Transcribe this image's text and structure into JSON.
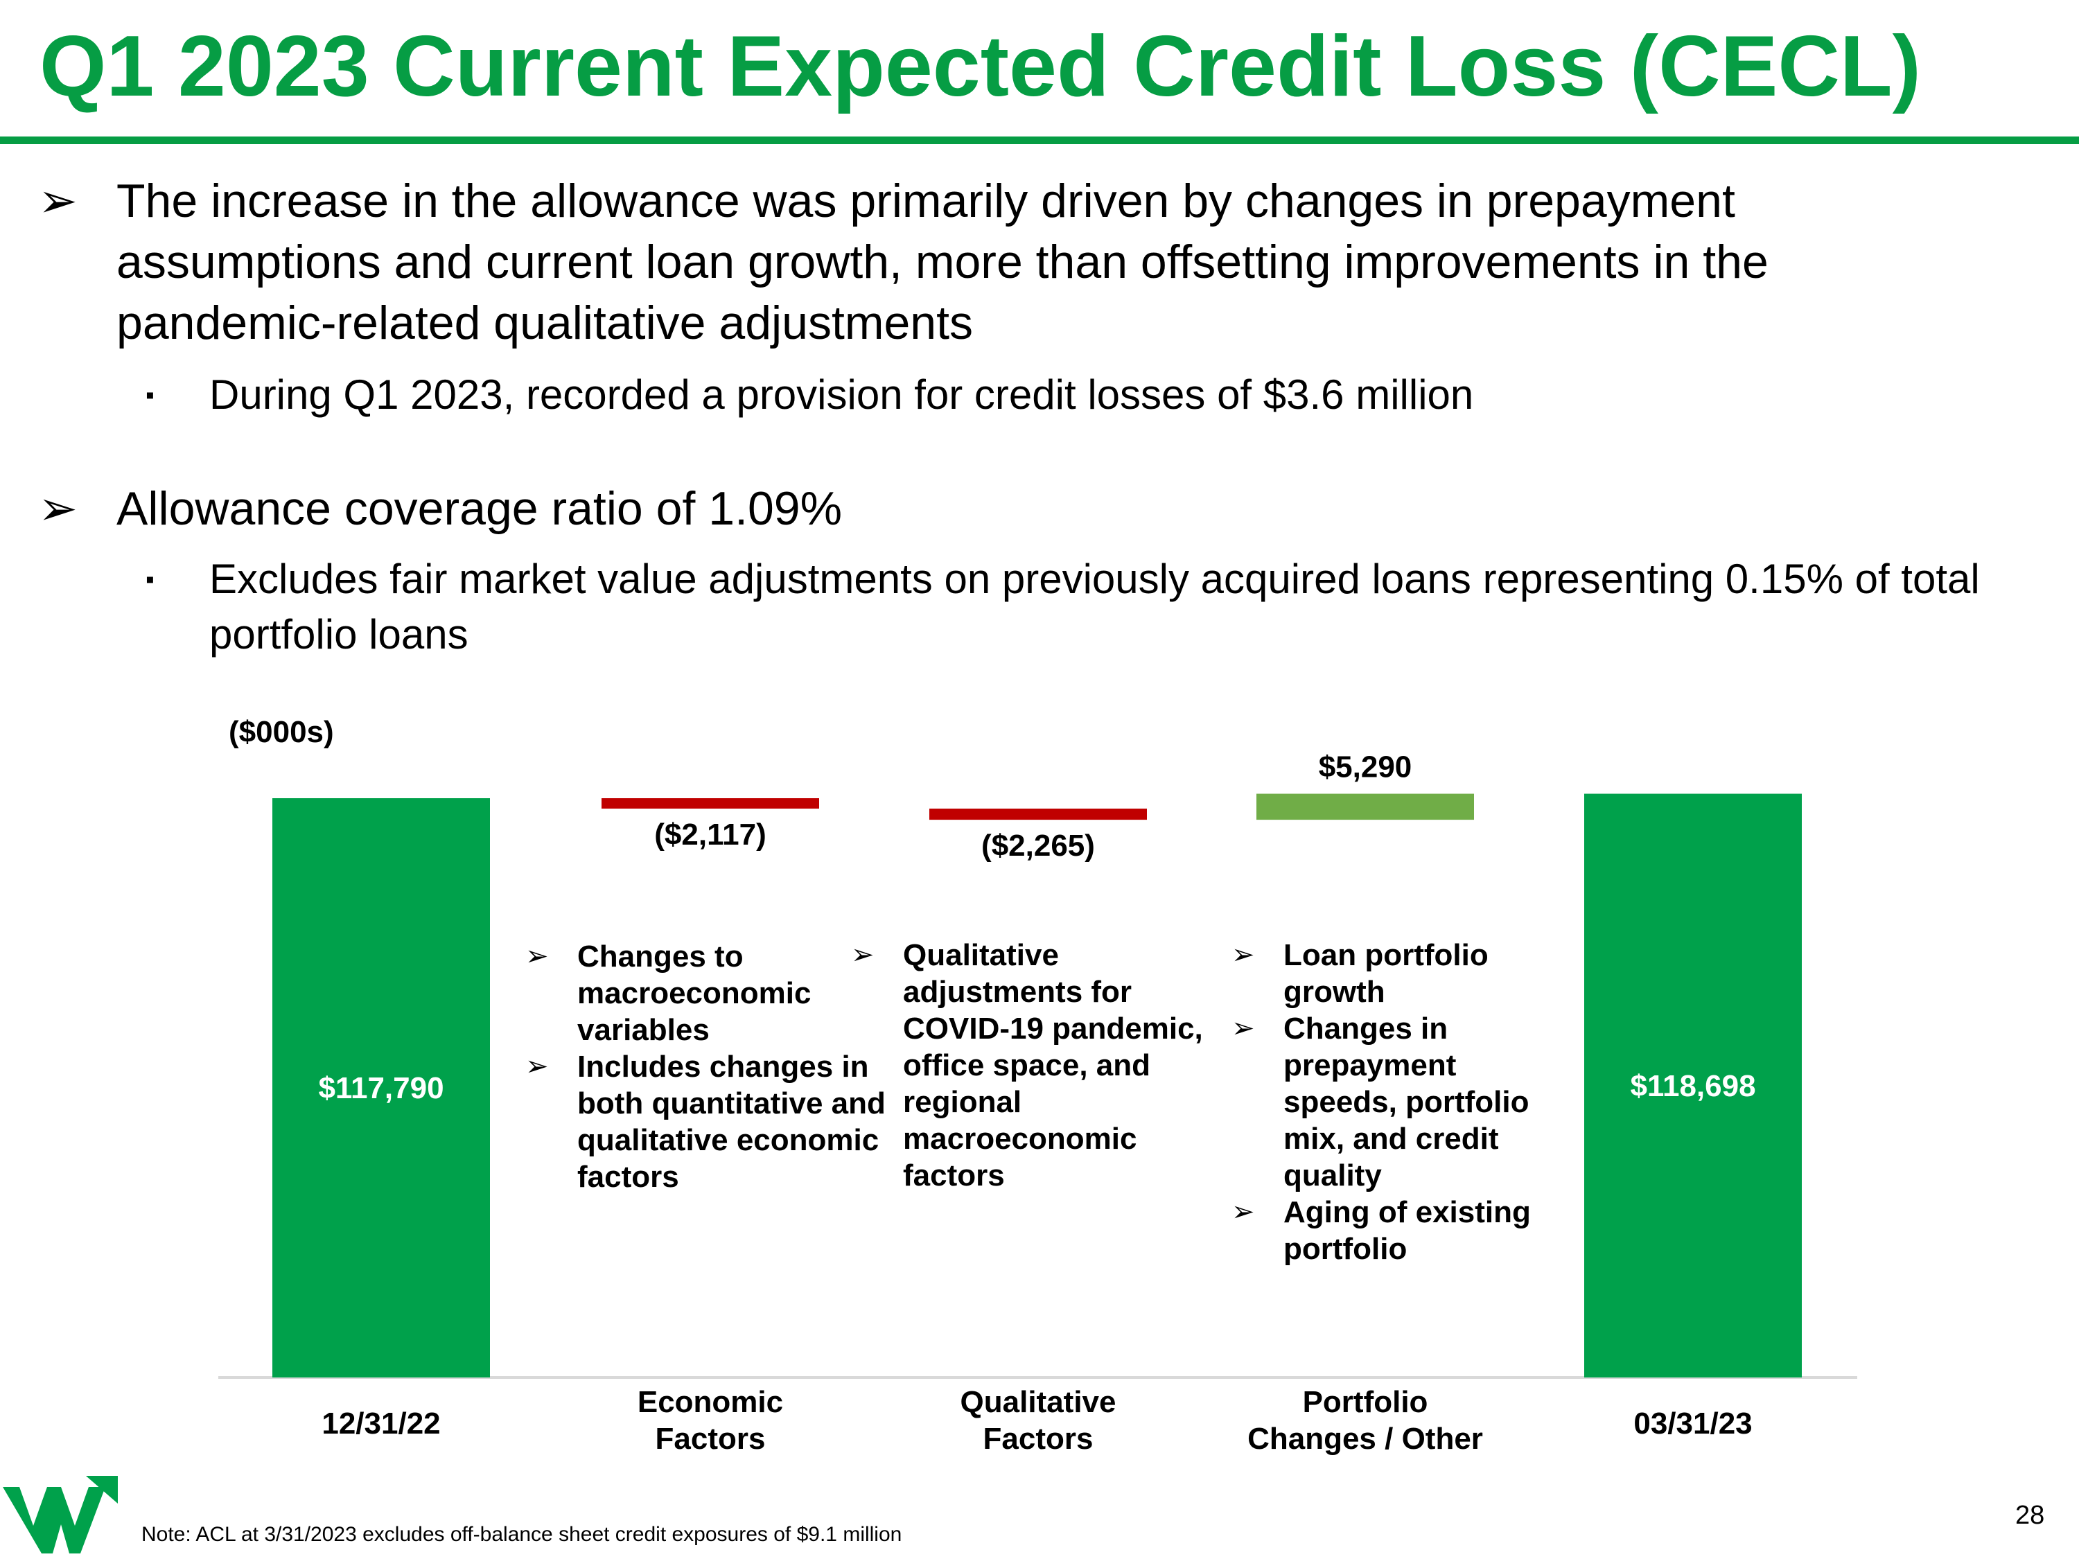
{
  "title": "Q1 2023 Current Expected Credit Loss (CECL)",
  "bullets": [
    {
      "marker": "➢",
      "text": "The increase in the allowance was primarily driven by changes in prepayment assumptions and current loan growth, more than offsetting improvements in the pandemic-related qualitative adjustments",
      "sub": {
        "marker": "▪",
        "text": "During Q1 2023, recorded a provision for credit losses of $3.6 million"
      }
    },
    {
      "marker": "➢",
      "text": "Allowance coverage ratio of 1.09%",
      "sub": {
        "marker": "▪",
        "text": "Excludes fair market value adjustments on previously acquired loans representing 0.15% of total portfolio loans"
      }
    }
  ],
  "chart_data": {
    "type": "bar",
    "subtype": "waterfall",
    "unit_label": "($000s)",
    "categories": [
      "12/31/22",
      "Economic Factors",
      "Qualitative Factors",
      "Portfolio Changes / Other",
      "03/31/23"
    ],
    "values": [
      117790,
      -2117,
      -2265,
      5290,
      118698
    ],
    "kinds": [
      "total",
      "decrease",
      "decrease",
      "increase",
      "total"
    ],
    "value_labels": [
      "$117,790",
      "($2,117)",
      "($2,265)",
      "$5,290",
      "$118,698"
    ],
    "colors": {
      "total": "#00a14b",
      "decrease": "#c00000",
      "increase": "#70ad47"
    }
  },
  "annotations": {
    "economic": [
      "Changes to macroeconomic variables",
      "Includes changes in both quantitative and qualitative economic factors"
    ],
    "qualitative": [
      "Qualitative adjustments for COVID-19 pandemic, office space, and regional macroeconomic factors"
    ],
    "portfolio": [
      "Loan portfolio growth",
      "Changes in prepayment speeds, portfolio mix, and credit quality",
      "Aging of existing portfolio"
    ],
    "marker": "➢"
  },
  "note": "Note: ACL at 3/31/2023 excludes off-balance sheet credit exposures of $9.1 million",
  "page_number": "28",
  "colors": {
    "brand_green": "#069d44",
    "logo_green": "#00a14b"
  },
  "logo_icon": "brand-w-logo-icon"
}
